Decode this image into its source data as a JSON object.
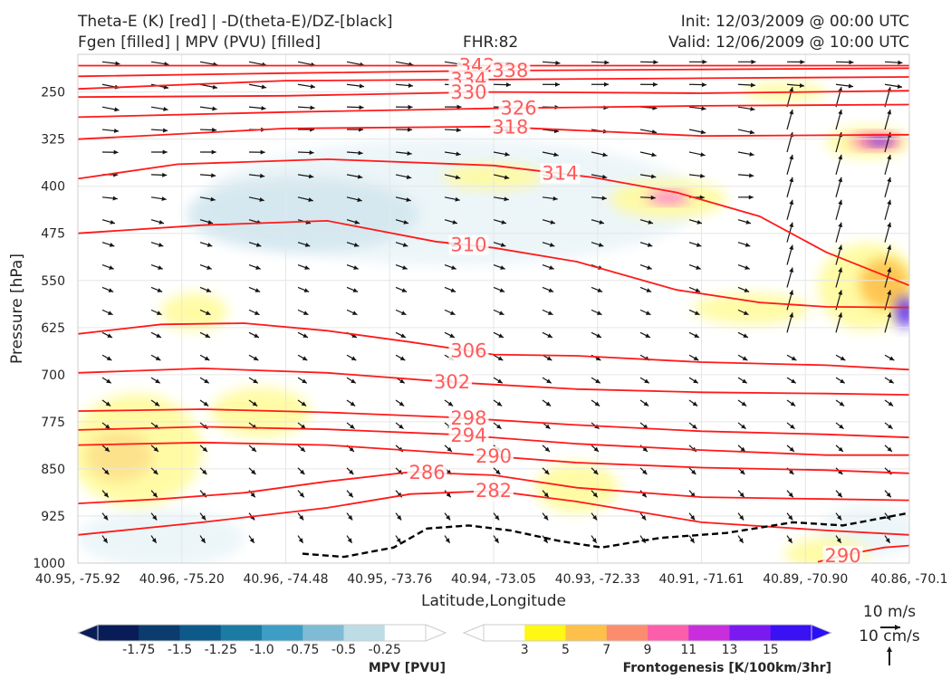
{
  "header": {
    "title_left_1": "Theta-E (K) [red] | -D(theta-E)/DZ-[black]",
    "title_left_2": "Fgen [filled] | MPV (PVU) [filled]",
    "fhr": "FHR:82",
    "init": "Init: 12/03/2009 @ 00:00 UTC",
    "valid": "Valid: 12/06/2009 @ 10:00 UTC"
  },
  "chart_data": {
    "type": "cross-section",
    "xlabel": "Latitude,Longitude",
    "ylabel": "Pressure [hPa]",
    "x_ticks": [
      "40.95, -75.92",
      "40.96, -75.20",
      "40.96, -74.48",
      "40.95, -73.76",
      "40.94, -73.05",
      "40.93, -72.33",
      "40.91, -71.61",
      "40.89, -70.90",
      "40.86, -70.1"
    ],
    "y_ticks": [
      250,
      325,
      400,
      475,
      550,
      625,
      700,
      775,
      850,
      925,
      1000
    ],
    "ylim": [
      190,
      1000
    ],
    "theta_e_contours": [
      {
        "label": "342",
        "value": 342,
        "points": [
          [
            0,
            208
          ],
          [
            0.25,
            208
          ],
          [
            0.5,
            208
          ],
          [
            0.75,
            208
          ],
          [
            1,
            208
          ]
        ],
        "label_x": 0.48
      },
      {
        "label": "338",
        "value": 338,
        "points": [
          [
            0,
            225
          ],
          [
            0.25,
            220
          ],
          [
            0.5,
            216
          ],
          [
            0.75,
            214
          ],
          [
            1,
            212
          ]
        ],
        "label_x": 0.52
      },
      {
        "label": "334",
        "value": 334,
        "points": [
          [
            0,
            245
          ],
          [
            0.25,
            232
          ],
          [
            0.5,
            230
          ],
          [
            0.75,
            228
          ],
          [
            1,
            226
          ]
        ],
        "label_x": 0.47
      },
      {
        "label": "330",
        "value": 330,
        "points": [
          [
            0,
            258
          ],
          [
            0.25,
            256
          ],
          [
            0.5,
            250
          ],
          [
            0.75,
            252
          ],
          [
            1,
            248
          ]
        ],
        "label_x": 0.47
      },
      {
        "label": "326",
        "value": 326,
        "points": [
          [
            0,
            290
          ],
          [
            0.25,
            282
          ],
          [
            0.5,
            276
          ],
          [
            0.75,
            272
          ],
          [
            1,
            270
          ]
        ],
        "label_x": 0.53
      },
      {
        "label": "318",
        "value": 318,
        "points": [
          [
            0,
            325
          ],
          [
            0.25,
            308
          ],
          [
            0.5,
            305
          ],
          [
            0.75,
            320
          ],
          [
            1,
            318
          ]
        ],
        "label_x": 0.52
      },
      {
        "label": "314",
        "value": 314,
        "points": [
          [
            0,
            388
          ],
          [
            0.12,
            365
          ],
          [
            0.3,
            357
          ],
          [
            0.5,
            367
          ],
          [
            0.62,
            386
          ],
          [
            0.72,
            410
          ],
          [
            0.82,
            448
          ],
          [
            0.9,
            505
          ],
          [
            1,
            558
          ]
        ],
        "label_x": 0.58
      },
      {
        "label": "310",
        "value": 310,
        "points": [
          [
            0,
            475
          ],
          [
            0.15,
            462
          ],
          [
            0.3,
            455
          ],
          [
            0.43,
            488
          ],
          [
            0.5,
            498
          ],
          [
            0.6,
            520
          ],
          [
            0.72,
            565
          ],
          [
            0.82,
            585
          ],
          [
            0.9,
            592
          ],
          [
            1,
            593
          ]
        ],
        "label_x": 0.47
      },
      {
        "label": "306",
        "value": 306,
        "points": [
          [
            0,
            635
          ],
          [
            0.1,
            620
          ],
          [
            0.2,
            618
          ],
          [
            0.3,
            630
          ],
          [
            0.4,
            648
          ],
          [
            0.5,
            668
          ],
          [
            0.6,
            670
          ],
          [
            0.75,
            680
          ],
          [
            0.9,
            685
          ],
          [
            1,
            692
          ]
        ],
        "label_x": 0.47
      },
      {
        "label": "302",
        "value": 302,
        "points": [
          [
            0,
            697
          ],
          [
            0.15,
            690
          ],
          [
            0.3,
            697
          ],
          [
            0.45,
            712
          ],
          [
            0.6,
            723
          ],
          [
            0.75,
            728
          ],
          [
            0.9,
            730
          ],
          [
            1,
            732
          ]
        ],
        "label_x": 0.45
      },
      {
        "label": "298",
        "value": 298,
        "points": [
          [
            0,
            758
          ],
          [
            0.15,
            755
          ],
          [
            0.3,
            760
          ],
          [
            0.45,
            768
          ],
          [
            0.6,
            780
          ],
          [
            0.75,
            790
          ],
          [
            0.9,
            795
          ],
          [
            1,
            800
          ]
        ],
        "label_x": 0.47
      },
      {
        "label": "294",
        "value": 294,
        "points": [
          [
            0,
            788
          ],
          [
            0.15,
            783
          ],
          [
            0.3,
            787
          ],
          [
            0.45,
            795
          ],
          [
            0.6,
            810
          ],
          [
            0.75,
            820
          ],
          [
            0.9,
            828
          ],
          [
            1,
            828
          ]
        ],
        "label_x": 0.47
      },
      {
        "label": "290",
        "value": 290,
        "points": [
          [
            0,
            812
          ],
          [
            0.15,
            808
          ],
          [
            0.3,
            812
          ],
          [
            0.45,
            825
          ],
          [
            0.6,
            840
          ],
          [
            0.75,
            848
          ],
          [
            0.9,
            852
          ],
          [
            1,
            857
          ]
        ],
        "label_x": 0.5
      },
      {
        "label": "286",
        "value": 286,
        "points": [
          [
            0,
            905
          ],
          [
            0.1,
            898
          ],
          [
            0.2,
            888
          ],
          [
            0.3,
            870
          ],
          [
            0.4,
            855
          ],
          [
            0.5,
            860
          ],
          [
            0.6,
            880
          ],
          [
            0.75,
            895
          ],
          [
            0.9,
            898
          ],
          [
            1,
            900
          ]
        ],
        "label_x": 0.42
      },
      {
        "label": "282",
        "value": 282,
        "points": [
          [
            0,
            955
          ],
          [
            0.15,
            935
          ],
          [
            0.3,
            912
          ],
          [
            0.4,
            890
          ],
          [
            0.5,
            885
          ],
          [
            0.6,
            902
          ],
          [
            0.75,
            935
          ],
          [
            0.9,
            948
          ],
          [
            1,
            955
          ]
        ],
        "label_x": 0.5
      },
      {
        "label": "290",
        "value": 290,
        "points": [
          [
            0.89,
            998
          ],
          [
            0.93,
            985
          ],
          [
            0.97,
            975
          ],
          [
            1,
            972
          ]
        ],
        "label_x": 0.92
      }
    ],
    "stability_contour": {
      "value": 0,
      "style": "black dashed",
      "points": [
        [
          0.27,
          985
        ],
        [
          0.32,
          990
        ],
        [
          0.38,
          975
        ],
        [
          0.42,
          945
        ],
        [
          0.47,
          940
        ],
        [
          0.52,
          948
        ],
        [
          0.58,
          965
        ],
        [
          0.63,
          975
        ],
        [
          0.7,
          960
        ],
        [
          0.78,
          952
        ],
        [
          0.86,
          935
        ],
        [
          0.92,
          940
        ],
        [
          1,
          920
        ]
      ]
    },
    "mpv_colorbar": {
      "title": "MPV [PVU]",
      "ticks": [
        "-1.75",
        "-1.5",
        "-1.25",
        "-1.0",
        "-0.75",
        "-0.5",
        "-0.25"
      ],
      "colors": [
        "#081d58",
        "#0b3c6e",
        "#0d5a8a",
        "#1b7ba3",
        "#3d9dc4",
        "#7fbbd4",
        "#bcdce6",
        "#ffffff"
      ]
    },
    "fgen_colorbar": {
      "title": "Frontogenesis [K/100km/3hr]",
      "ticks": [
        "3",
        "5",
        "7",
        "9",
        "11",
        "13",
        "15"
      ],
      "colors": [
        "#ffffff",
        "#fff714",
        "#fdc04a",
        "#fc8c6e",
        "#fb5eaa",
        "#c82edc",
        "#7a1af0",
        "#3a10f5"
      ]
    },
    "fill_areas": [
      {
        "kind": "mpv",
        "color": "#eaf4f8",
        "x": 0.45,
        "p": 425,
        "rx": 0.3,
        "rp": 100
      },
      {
        "kind": "mpv",
        "color": "#d3e7ef",
        "x": 0.27,
        "p": 445,
        "rx": 0.14,
        "rp": 60
      },
      {
        "kind": "mpv",
        "color": "#eaf4f8",
        "x": 0.1,
        "p": 960,
        "rx": 0.1,
        "rp": 45
      },
      {
        "kind": "mpv",
        "color": "#eaf4f8",
        "x": 0.95,
        "p": 950,
        "rx": 0.06,
        "rp": 40
      },
      {
        "kind": "fgen",
        "color": "#fffb9c",
        "x": 0.07,
        "p": 820,
        "rx": 0.08,
        "rp": 90
      },
      {
        "kind": "fgen",
        "color": "#fde08a",
        "x": 0.05,
        "p": 830,
        "rx": 0.04,
        "rp": 40
      },
      {
        "kind": "fgen",
        "color": "#fffb9c",
        "x": 0.22,
        "p": 760,
        "rx": 0.06,
        "rp": 40
      },
      {
        "kind": "fgen",
        "color": "#fffb9c",
        "x": 0.5,
        "p": 385,
        "rx": 0.06,
        "rp": 20
      },
      {
        "kind": "fgen",
        "color": "#fffb9c",
        "x": 0.71,
        "p": 420,
        "rx": 0.07,
        "rp": 30
      },
      {
        "kind": "fgen",
        "color": "#ff6fd4",
        "x": 0.71,
        "p": 418,
        "rx": 0.025,
        "rp": 10
      },
      {
        "kind": "fgen",
        "color": "#fffb9c",
        "x": 0.81,
        "p": 595,
        "rx": 0.07,
        "rp": 25
      },
      {
        "kind": "fgen",
        "color": "#fffb9c",
        "x": 0.95,
        "p": 560,
        "rx": 0.06,
        "rp": 70
      },
      {
        "kind": "fgen",
        "color": "#fdc04a",
        "x": 0.97,
        "p": 555,
        "rx": 0.03,
        "rp": 40
      },
      {
        "kind": "fgen",
        "color": "#5a2cf0",
        "x": 0.995,
        "p": 600,
        "rx": 0.012,
        "rp": 25
      },
      {
        "kind": "fgen",
        "color": "#fffb9c",
        "x": 0.95,
        "p": 330,
        "rx": 0.05,
        "rp": 25
      },
      {
        "kind": "fgen",
        "color": "#fb5eaa",
        "x": 0.96,
        "p": 328,
        "rx": 0.03,
        "rp": 12
      },
      {
        "kind": "fgen",
        "color": "#5a2cf0",
        "x": 0.965,
        "p": 328,
        "rx": 0.015,
        "rp": 7
      },
      {
        "kind": "fgen",
        "color": "#fffb9c",
        "x": 0.6,
        "p": 880,
        "rx": 0.05,
        "rp": 40
      },
      {
        "kind": "fgen",
        "color": "#fffb9c",
        "x": 0.9,
        "p": 985,
        "rx": 0.05,
        "rp": 25
      },
      {
        "kind": "fgen",
        "color": "#fffb9c",
        "x": 0.85,
        "p": 250,
        "rx": 0.05,
        "rp": 15
      },
      {
        "kind": "fgen",
        "color": "#fffb9c",
        "x": 0.14,
        "p": 600,
        "rx": 0.04,
        "rp": 30
      }
    ],
    "wind_key": {
      "u_label": "10 m/s",
      "w_label": "10 cm/s"
    }
  }
}
